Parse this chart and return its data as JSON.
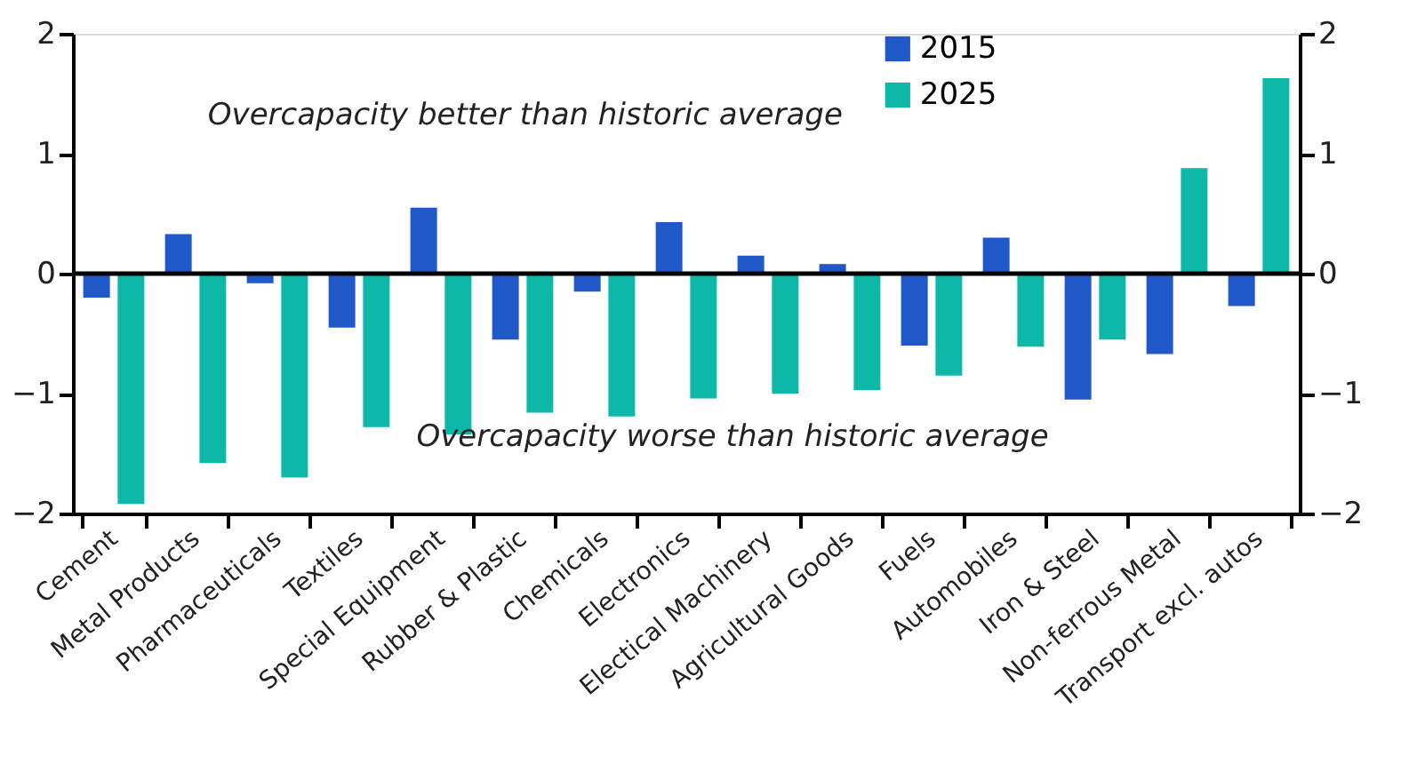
{
  "chart_data": {
    "type": "bar",
    "categories": [
      "Cement",
      "Metal Products",
      "Pharmaceuticals",
      "Textiles",
      "Special Equipment",
      "Rubber & Plastic",
      "Chemicals",
      "Electronics",
      "Electical Machinery",
      "Agricultural Goods",
      "Fuels",
      "Automobiles",
      "Iron & Steel",
      "Non-ferrous Metal",
      "Transport excl. autos"
    ],
    "series": [
      {
        "name": "2015",
        "color": "#2058c8",
        "values": [
          -0.2,
          0.33,
          -0.08,
          -0.45,
          0.55,
          -0.55,
          -0.15,
          0.43,
          0.15,
          0.08,
          -0.6,
          0.3,
          -1.05,
          -0.67,
          -0.27
        ]
      },
      {
        "name": "2025",
        "color": "#0db8a8",
        "values": [
          -1.92,
          -1.58,
          -1.7,
          -1.28,
          -1.34,
          -1.16,
          -1.19,
          -1.04,
          -1.0,
          -0.97,
          -0.85,
          -0.61,
          -0.55,
          0.88,
          1.63
        ]
      }
    ],
    "ylim": [
      -2,
      2
    ],
    "yticks": [
      -2,
      -1,
      0,
      1,
      2
    ],
    "y2lim": [
      -2,
      2
    ],
    "y2ticks": [
      -2,
      -1,
      0,
      1,
      2
    ],
    "ref_lines": [
      {
        "axis": "y",
        "value": 0,
        "color": "#000000"
      }
    ],
    "annotations": [
      "Overcapacity better than historic average",
      "Overcapacity worse than historic average"
    ],
    "legend": "top right",
    "grid": false
  }
}
